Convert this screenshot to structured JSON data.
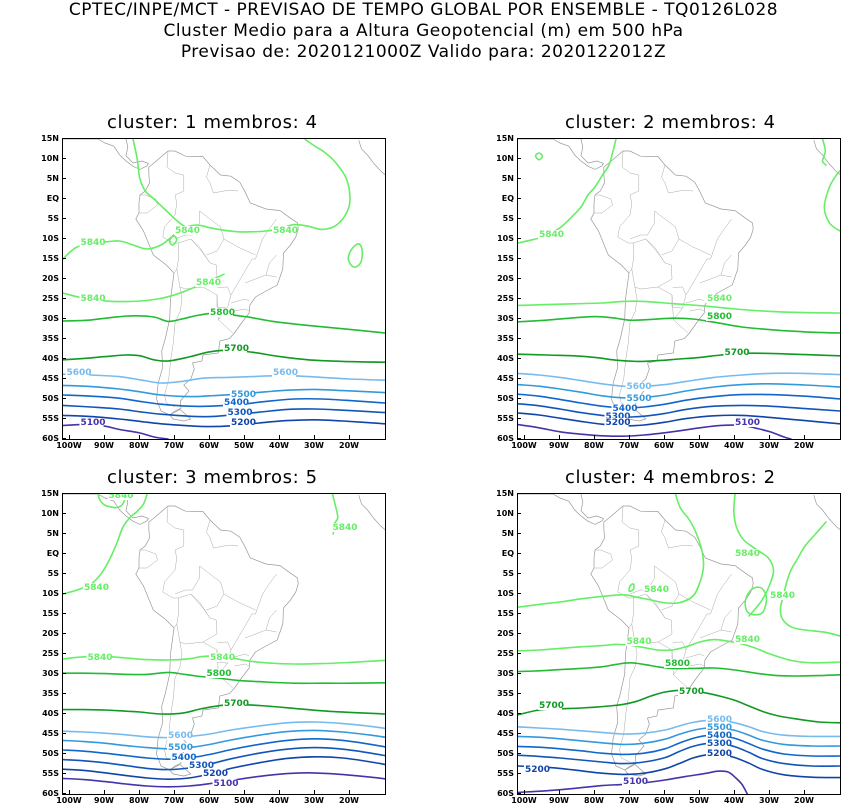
{
  "header": {
    "line1": "CPTEC/INPE/MCT - PREVISAO DE TEMPO GLOBAL POR ENSEMBLE - TQ0126L028",
    "line2": "Cluster Medio para a Altura Geopotencial (m) em 500 hPa",
    "line3": "Previsao de: 2020121000Z   Valido para: 2020122012Z"
  },
  "axes": {
    "lat_ticks": [
      "15N",
      "10N",
      "5N",
      "EQ",
      "5S",
      "10S",
      "15S",
      "20S",
      "25S",
      "30S",
      "35S",
      "40S",
      "45S",
      "50S",
      "55S",
      "60S"
    ],
    "lon_ticks": [
      "100W",
      "90W",
      "80W",
      "70W",
      "60W",
      "50W",
      "40W",
      "30W",
      "20W"
    ]
  },
  "colors": {
    "c5840": "#66ee66",
    "c5800": "#22bb33",
    "c5700": "#119922",
    "c5600": "#77bbee",
    "c5500": "#3399dd",
    "c5400": "#1166cc",
    "c5300": "#1155bb",
    "c5200": "#1144aa",
    "c5100": "#4433aa",
    "land": "#999999"
  },
  "panels": [
    {
      "title": "cluster: 1   membros: 4",
      "labels": [
        {
          "text": "5840",
          "lon": -70,
          "lat": -8.5,
          "c": "c5840"
        },
        {
          "text": "5840",
          "lon": -42,
          "lat": -8.5,
          "c": "c5840"
        },
        {
          "text": "5840",
          "lon": -97,
          "lat": -11.5,
          "c": "c5840"
        },
        {
          "text": "5840",
          "lon": -64,
          "lat": -21.5,
          "c": "c5840"
        },
        {
          "text": "5840",
          "lon": -97,
          "lat": -25.5,
          "c": "c5840"
        },
        {
          "text": "5800",
          "lon": -60,
          "lat": -29,
          "c": "c5800"
        },
        {
          "text": "5700",
          "lon": -56,
          "lat": -38,
          "c": "c5700"
        },
        {
          "text": "5600",
          "lon": -101,
          "lat": -44,
          "c": "c5600"
        },
        {
          "text": "5600",
          "lon": -42,
          "lat": -44,
          "c": "c5600"
        },
        {
          "text": "5500",
          "lon": -54,
          "lat": -49.5,
          "c": "c5500"
        },
        {
          "text": "5400",
          "lon": -56,
          "lat": -51.5,
          "c": "c5400"
        },
        {
          "text": "5300",
          "lon": -55,
          "lat": -54,
          "c": "c5300"
        },
        {
          "text": "5200",
          "lon": -54,
          "lat": -56.5,
          "c": "c5200"
        },
        {
          "text": "5100",
          "lon": -97,
          "lat": -56.5,
          "c": "c5100"
        }
      ]
    },
    {
      "title": "cluster: 2   membros: 4",
      "labels": [
        {
          "text": "5840",
          "lon": -96,
          "lat": -9.5,
          "c": "c5840"
        },
        {
          "text": "5840",
          "lon": -48,
          "lat": -25.5,
          "c": "c5840"
        },
        {
          "text": "5800",
          "lon": -48,
          "lat": -30,
          "c": "c5800"
        },
        {
          "text": "5700",
          "lon": -43,
          "lat": -39,
          "c": "c5700"
        },
        {
          "text": "5600",
          "lon": -71,
          "lat": -47.5,
          "c": "c5600"
        },
        {
          "text": "5500",
          "lon": -71,
          "lat": -50.5,
          "c": "c5500"
        },
        {
          "text": "5400",
          "lon": -75,
          "lat": -53,
          "c": "c5400"
        },
        {
          "text": "5300",
          "lon": -77,
          "lat": -55,
          "c": "c5300"
        },
        {
          "text": "5200",
          "lon": -77,
          "lat": -56.5,
          "c": "c5200"
        },
        {
          "text": "5100",
          "lon": -40,
          "lat": -56.5,
          "c": "c5100"
        }
      ]
    },
    {
      "title": "cluster: 3   membros: 5",
      "labels": [
        {
          "text": "5840",
          "lon": -89,
          "lat": 14,
          "c": "c5840"
        },
        {
          "text": "5840",
          "lon": -25,
          "lat": 6,
          "c": "c5840"
        },
        {
          "text": "5840",
          "lon": -96,
          "lat": -9,
          "c": "c5840"
        },
        {
          "text": "5840",
          "lon": -95,
          "lat": -26.5,
          "c": "c5840"
        },
        {
          "text": "5840",
          "lon": -60,
          "lat": -26.5,
          "c": "c5840"
        },
        {
          "text": "5800",
          "lon": -61,
          "lat": -30.5,
          "c": "c5800"
        },
        {
          "text": "5700",
          "lon": -56,
          "lat": -38,
          "c": "c5700"
        },
        {
          "text": "5600",
          "lon": -72,
          "lat": -46,
          "c": "c5600"
        },
        {
          "text": "5500",
          "lon": -72,
          "lat": -49,
          "c": "c5500"
        },
        {
          "text": "5400",
          "lon": -71,
          "lat": -51.5,
          "c": "c5400"
        },
        {
          "text": "5300",
          "lon": -66,
          "lat": -53.5,
          "c": "c5300"
        },
        {
          "text": "5200",
          "lon": -62,
          "lat": -55.5,
          "c": "c5200"
        },
        {
          "text": "5100",
          "lon": -59,
          "lat": -58,
          "c": "c5100"
        }
      ]
    },
    {
      "title": "cluster: 4   membros: 2",
      "labels": [
        {
          "text": "5840",
          "lon": -66,
          "lat": -9.5,
          "c": "c5840"
        },
        {
          "text": "5840",
          "lon": -40,
          "lat": -0.5,
          "c": "c5840"
        },
        {
          "text": "5840",
          "lon": -30,
          "lat": -11,
          "c": "c5840"
        },
        {
          "text": "5840",
          "lon": -71,
          "lat": -22.5,
          "c": "c5840"
        },
        {
          "text": "5840",
          "lon": -40,
          "lat": -22,
          "c": "c5840"
        },
        {
          "text": "5800",
          "lon": -60,
          "lat": -28,
          "c": "c5800"
        },
        {
          "text": "5700",
          "lon": -96,
          "lat": -38.5,
          "c": "c5700"
        },
        {
          "text": "5700",
          "lon": -56,
          "lat": -35,
          "c": "c5700"
        },
        {
          "text": "5600",
          "lon": -48,
          "lat": -42,
          "c": "c5600"
        },
        {
          "text": "5500",
          "lon": -48,
          "lat": -44,
          "c": "c5500"
        },
        {
          "text": "5400",
          "lon": -48,
          "lat": -46,
          "c": "c5400"
        },
        {
          "text": "5300",
          "lon": -48,
          "lat": -48,
          "c": "c5300"
        },
        {
          "text": "5200",
          "lon": -48,
          "lat": -50.5,
          "c": "c5200"
        },
        {
          "text": "5200",
          "lon": -100,
          "lat": -54.5,
          "c": "c5200"
        },
        {
          "text": "5100",
          "lon": -72,
          "lat": -57.5,
          "c": "c5100"
        }
      ]
    }
  ]
}
